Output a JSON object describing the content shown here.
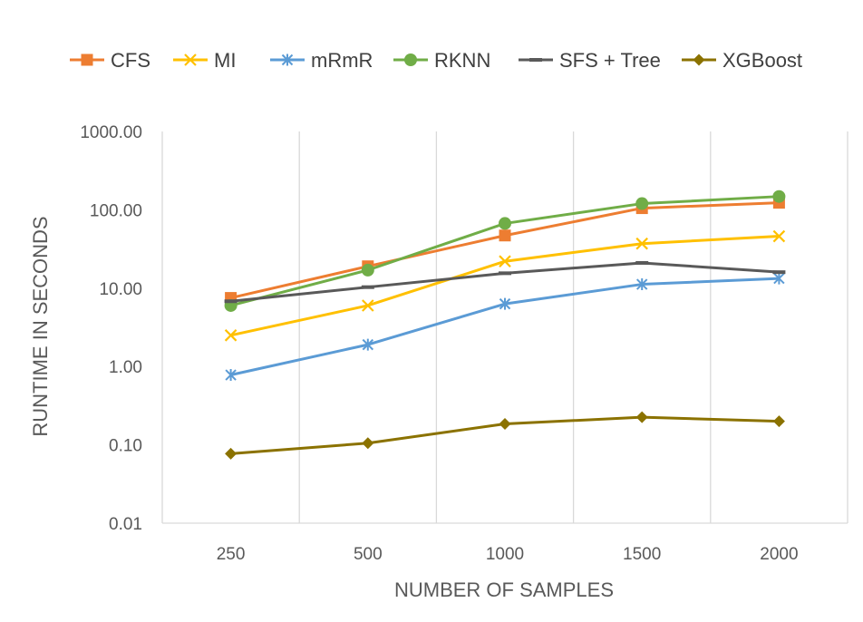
{
  "chart_data": {
    "type": "line",
    "title": "",
    "xlabel": "NUMBER OF SAMPLES",
    "ylabel": "RUNTIME IN SECONDS",
    "yscale": "log",
    "ylim": [
      0.01,
      1000
    ],
    "yticks": [
      "1000.00",
      "100.00",
      "10.00",
      "1.00",
      "0.10",
      "0.01"
    ],
    "categories": [
      "250",
      "500",
      "1000",
      "1500",
      "2000"
    ],
    "grid": "vertical",
    "legend_position": "top",
    "series": [
      {
        "name": "CFS",
        "color": "#ED7D31",
        "marker": "square",
        "values": [
          7.5,
          19,
          47,
          105,
          123
        ]
      },
      {
        "name": "MI",
        "color": "#FFC000",
        "marker": "x",
        "values": [
          2.5,
          6,
          22,
          37,
          46
        ]
      },
      {
        "name": "mRmR",
        "color": "#5B9BD5",
        "marker": "star",
        "values": [
          0.78,
          1.9,
          6.3,
          11.2,
          13.3
        ]
      },
      {
        "name": "RKNN",
        "color": "#70AD47",
        "marker": "circle",
        "values": [
          6,
          17,
          67,
          120,
          148
        ]
      },
      {
        "name": "SFS + Tree",
        "color": "#595959",
        "marker": "dash",
        "values": [
          6.8,
          10.3,
          15.5,
          21,
          16
        ]
      },
      {
        "name": "XGBoost",
        "color": "#8B7200",
        "marker": "diamond",
        "values": [
          0.077,
          0.105,
          0.185,
          0.225,
          0.2
        ]
      }
    ]
  }
}
